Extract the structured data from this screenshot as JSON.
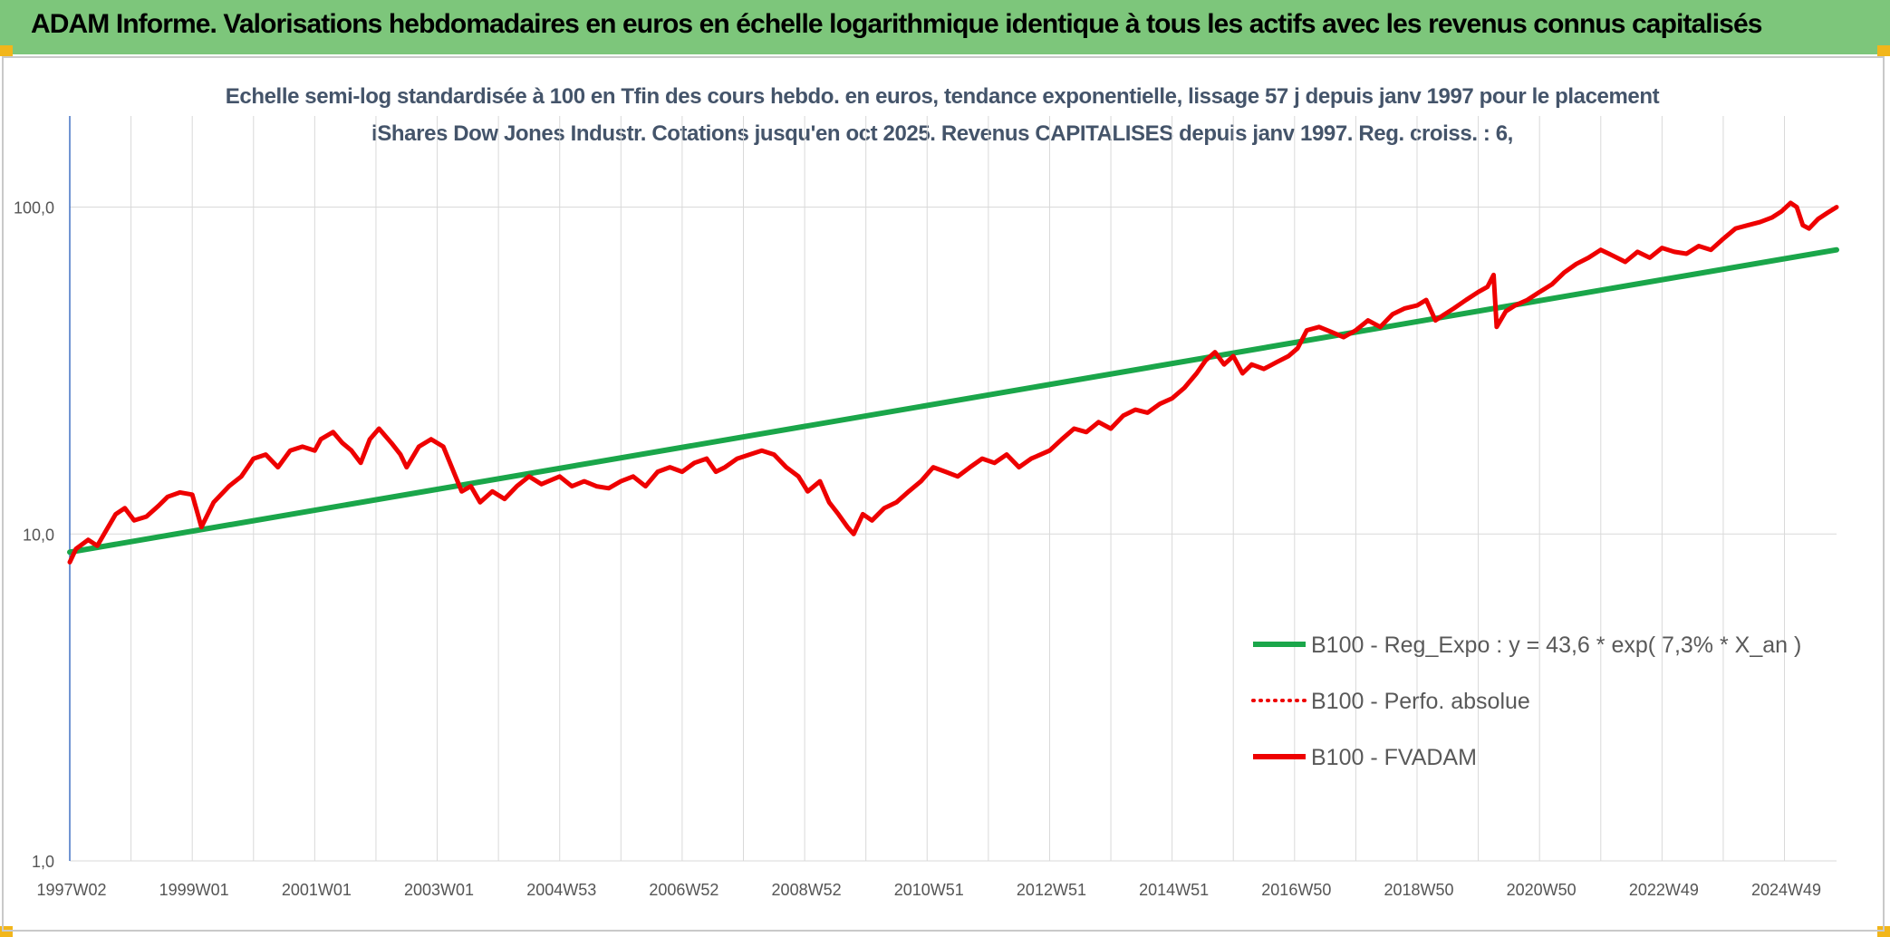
{
  "header": {
    "title": "ADAM Informe. Valorisations hebdomadaires en euros en échelle logarithmique identique à tous les actifs avec les revenus connus capitalisés"
  },
  "colors": {
    "banner": "#7dc67b",
    "trend": "#1aa64a",
    "series": "#ee0000",
    "grid": "#d9d9d9",
    "axis": "#4472c4"
  },
  "chart_data": {
    "type": "line",
    "subtitle": "Echelle semi-log standardisée à 100 en Tfin des cours hebdo. en euros, tendance exponentielle, lissage 57 j depuis janv 1997 pour le placement iShares Dow Jones Industr. Cotations jusqu'en oct 2025. Revenus CAPITALISES depuis janv 1997. Reg. croiss. : 6,",
    "y_scale": "log",
    "ylim": [
      1,
      190
    ],
    "y_ticks": [
      {
        "value": 1,
        "label": "1,0"
      },
      {
        "value": 10,
        "label": "10,0"
      },
      {
        "value": 100,
        "label": "100,0"
      }
    ],
    "x_range": [
      1997.0,
      2025.85
    ],
    "x_ticks": [
      {
        "t": 1997.0,
        "label": "1997W02"
      },
      {
        "t": 1999.0,
        "label": "1999W01"
      },
      {
        "t": 2001.0,
        "label": "2001W01"
      },
      {
        "t": 2003.0,
        "label": "2003W01"
      },
      {
        "t": 2005.0,
        "label": "2004W53"
      },
      {
        "t": 2007.0,
        "label": "2006W52"
      },
      {
        "t": 2009.0,
        "label": "2008W52"
      },
      {
        "t": 2011.0,
        "label": "2010W51"
      },
      {
        "t": 2013.0,
        "label": "2012W51"
      },
      {
        "t": 2015.0,
        "label": "2014W51"
      },
      {
        "t": 2017.0,
        "label": "2016W50"
      },
      {
        "t": 2019.0,
        "label": "2018W50"
      },
      {
        "t": 2021.0,
        "label": "2020W50"
      },
      {
        "t": 2023.0,
        "label": "2022W49"
      },
      {
        "t": 2025.0,
        "label": "2024W49"
      }
    ],
    "grid": true,
    "legend_position": "bottom-right",
    "series": [
      {
        "name": "B100 - Reg_Expo : y = 43,6 * exp( 7,3% * X_an )",
        "style": "solid",
        "points": [
          [
            1997.0,
            8.8
          ],
          [
            2025.85,
            74
          ]
        ]
      },
      {
        "name": "B100 - Perfo. absolue",
        "style": "dotted",
        "points": []
      },
      {
        "name": "B100 - FVADAM",
        "style": "solid",
        "points": [
          [
            1997.0,
            8.2
          ],
          [
            1997.1,
            9.0
          ],
          [
            1997.3,
            9.6
          ],
          [
            1997.45,
            9.2
          ],
          [
            1997.6,
            10.3
          ],
          [
            1997.75,
            11.5
          ],
          [
            1997.9,
            12.0
          ],
          [
            1998.05,
            11.0
          ],
          [
            1998.25,
            11.3
          ],
          [
            1998.45,
            12.2
          ],
          [
            1998.6,
            13.0
          ],
          [
            1998.8,
            13.4
          ],
          [
            1999.0,
            13.2
          ],
          [
            1999.15,
            10.5
          ],
          [
            1999.35,
            12.5
          ],
          [
            1999.6,
            14.0
          ],
          [
            1999.8,
            15.0
          ],
          [
            2000.0,
            17.0
          ],
          [
            2000.2,
            17.5
          ],
          [
            2000.4,
            16.0
          ],
          [
            2000.6,
            18.0
          ],
          [
            2000.8,
            18.5
          ],
          [
            2001.0,
            18.0
          ],
          [
            2001.1,
            19.5
          ],
          [
            2001.3,
            20.5
          ],
          [
            2001.45,
            19.0
          ],
          [
            2001.6,
            18.0
          ],
          [
            2001.75,
            16.5
          ],
          [
            2001.9,
            19.5
          ],
          [
            2002.05,
            21.0
          ],
          [
            2002.25,
            19.0
          ],
          [
            2002.4,
            17.5
          ],
          [
            2002.5,
            16.0
          ],
          [
            2002.7,
            18.5
          ],
          [
            2002.9,
            19.5
          ],
          [
            2003.1,
            18.5
          ],
          [
            2003.3,
            15.0
          ],
          [
            2003.4,
            13.5
          ],
          [
            2003.55,
            14.0
          ],
          [
            2003.7,
            12.5
          ],
          [
            2003.9,
            13.5
          ],
          [
            2004.1,
            12.8
          ],
          [
            2004.3,
            14.0
          ],
          [
            2004.5,
            15.0
          ],
          [
            2004.7,
            14.2
          ],
          [
            2005.0,
            15.0
          ],
          [
            2005.2,
            14.0
          ],
          [
            2005.4,
            14.5
          ],
          [
            2005.6,
            14.0
          ],
          [
            2005.8,
            13.8
          ],
          [
            2006.0,
            14.5
          ],
          [
            2006.2,
            15.0
          ],
          [
            2006.4,
            14.0
          ],
          [
            2006.6,
            15.5
          ],
          [
            2006.8,
            16.0
          ],
          [
            2007.0,
            15.5
          ],
          [
            2007.2,
            16.5
          ],
          [
            2007.4,
            17.0
          ],
          [
            2007.55,
            15.5
          ],
          [
            2007.7,
            16.0
          ],
          [
            2007.9,
            17.0
          ],
          [
            2008.1,
            17.5
          ],
          [
            2008.3,
            18.0
          ],
          [
            2008.5,
            17.5
          ],
          [
            2008.7,
            16.0
          ],
          [
            2008.9,
            15.0
          ],
          [
            2009.05,
            13.5
          ],
          [
            2009.25,
            14.5
          ],
          [
            2009.4,
            12.5
          ],
          [
            2009.55,
            11.5
          ],
          [
            2009.7,
            10.5
          ],
          [
            2009.8,
            10.0
          ],
          [
            2009.95,
            11.5
          ],
          [
            2010.1,
            11.0
          ],
          [
            2010.3,
            12.0
          ],
          [
            2010.5,
            12.5
          ],
          [
            2010.7,
            13.5
          ],
          [
            2010.9,
            14.5
          ],
          [
            2011.1,
            16.0
          ],
          [
            2011.3,
            15.5
          ],
          [
            2011.5,
            15.0
          ],
          [
            2011.7,
            16.0
          ],
          [
            2011.9,
            17.0
          ],
          [
            2012.1,
            16.5
          ],
          [
            2012.3,
            17.5
          ],
          [
            2012.5,
            16.0
          ],
          [
            2012.7,
            17.0
          ],
          [
            2013.0,
            18.0
          ],
          [
            2013.2,
            19.5
          ],
          [
            2013.4,
            21.0
          ],
          [
            2013.6,
            20.5
          ],
          [
            2013.8,
            22.0
          ],
          [
            2014.0,
            21.0
          ],
          [
            2014.2,
            23.0
          ],
          [
            2014.4,
            24.0
          ],
          [
            2014.6,
            23.5
          ],
          [
            2014.8,
            25.0
          ],
          [
            2015.0,
            26.0
          ],
          [
            2015.2,
            28.0
          ],
          [
            2015.4,
            31.0
          ],
          [
            2015.55,
            34.0
          ],
          [
            2015.7,
            36.0
          ],
          [
            2015.85,
            33.0
          ],
          [
            2016.0,
            35.0
          ],
          [
            2016.15,
            31.0
          ],
          [
            2016.3,
            33.0
          ],
          [
            2016.5,
            32.0
          ],
          [
            2016.7,
            33.5
          ],
          [
            2016.9,
            35.0
          ],
          [
            2017.05,
            37.0
          ],
          [
            2017.2,
            42.0
          ],
          [
            2017.4,
            43.0
          ],
          [
            2017.6,
            41.5
          ],
          [
            2017.8,
            40.0
          ],
          [
            2018.0,
            42.0
          ],
          [
            2018.2,
            45.0
          ],
          [
            2018.4,
            43.0
          ],
          [
            2018.6,
            47.0
          ],
          [
            2018.8,
            49.0
          ],
          [
            2019.0,
            50.0
          ],
          [
            2019.15,
            52.0
          ],
          [
            2019.3,
            45.0
          ],
          [
            2019.45,
            47.0
          ],
          [
            2019.6,
            49.0
          ],
          [
            2019.8,
            52.0
          ],
          [
            2020.0,
            55.0
          ],
          [
            2020.15,
            57.0
          ],
          [
            2020.25,
            62.0
          ],
          [
            2020.3,
            43.0
          ],
          [
            2020.45,
            48.0
          ],
          [
            2020.6,
            50.0
          ],
          [
            2020.8,
            52.0
          ],
          [
            2021.0,
            55.0
          ],
          [
            2021.2,
            58.0
          ],
          [
            2021.4,
            63.0
          ],
          [
            2021.6,
            67.0
          ],
          [
            2021.8,
            70.0
          ],
          [
            2022.0,
            74.0
          ],
          [
            2022.2,
            71.0
          ],
          [
            2022.4,
            68.0
          ],
          [
            2022.6,
            73.0
          ],
          [
            2022.8,
            70.0
          ],
          [
            2023.0,
            75.0
          ],
          [
            2023.2,
            73.0
          ],
          [
            2023.4,
            72.0
          ],
          [
            2023.6,
            76.0
          ],
          [
            2023.8,
            74.0
          ],
          [
            2024.0,
            80.0
          ],
          [
            2024.2,
            86.0
          ],
          [
            2024.4,
            88.0
          ],
          [
            2024.6,
            90.0
          ],
          [
            2024.8,
            93.0
          ],
          [
            2024.95,
            97.0
          ],
          [
            2025.1,
            103.0
          ],
          [
            2025.2,
            100.0
          ],
          [
            2025.3,
            88.0
          ],
          [
            2025.4,
            86.0
          ],
          [
            2025.55,
            92.0
          ],
          [
            2025.7,
            96.0
          ],
          [
            2025.85,
            100.0
          ]
        ]
      }
    ]
  }
}
